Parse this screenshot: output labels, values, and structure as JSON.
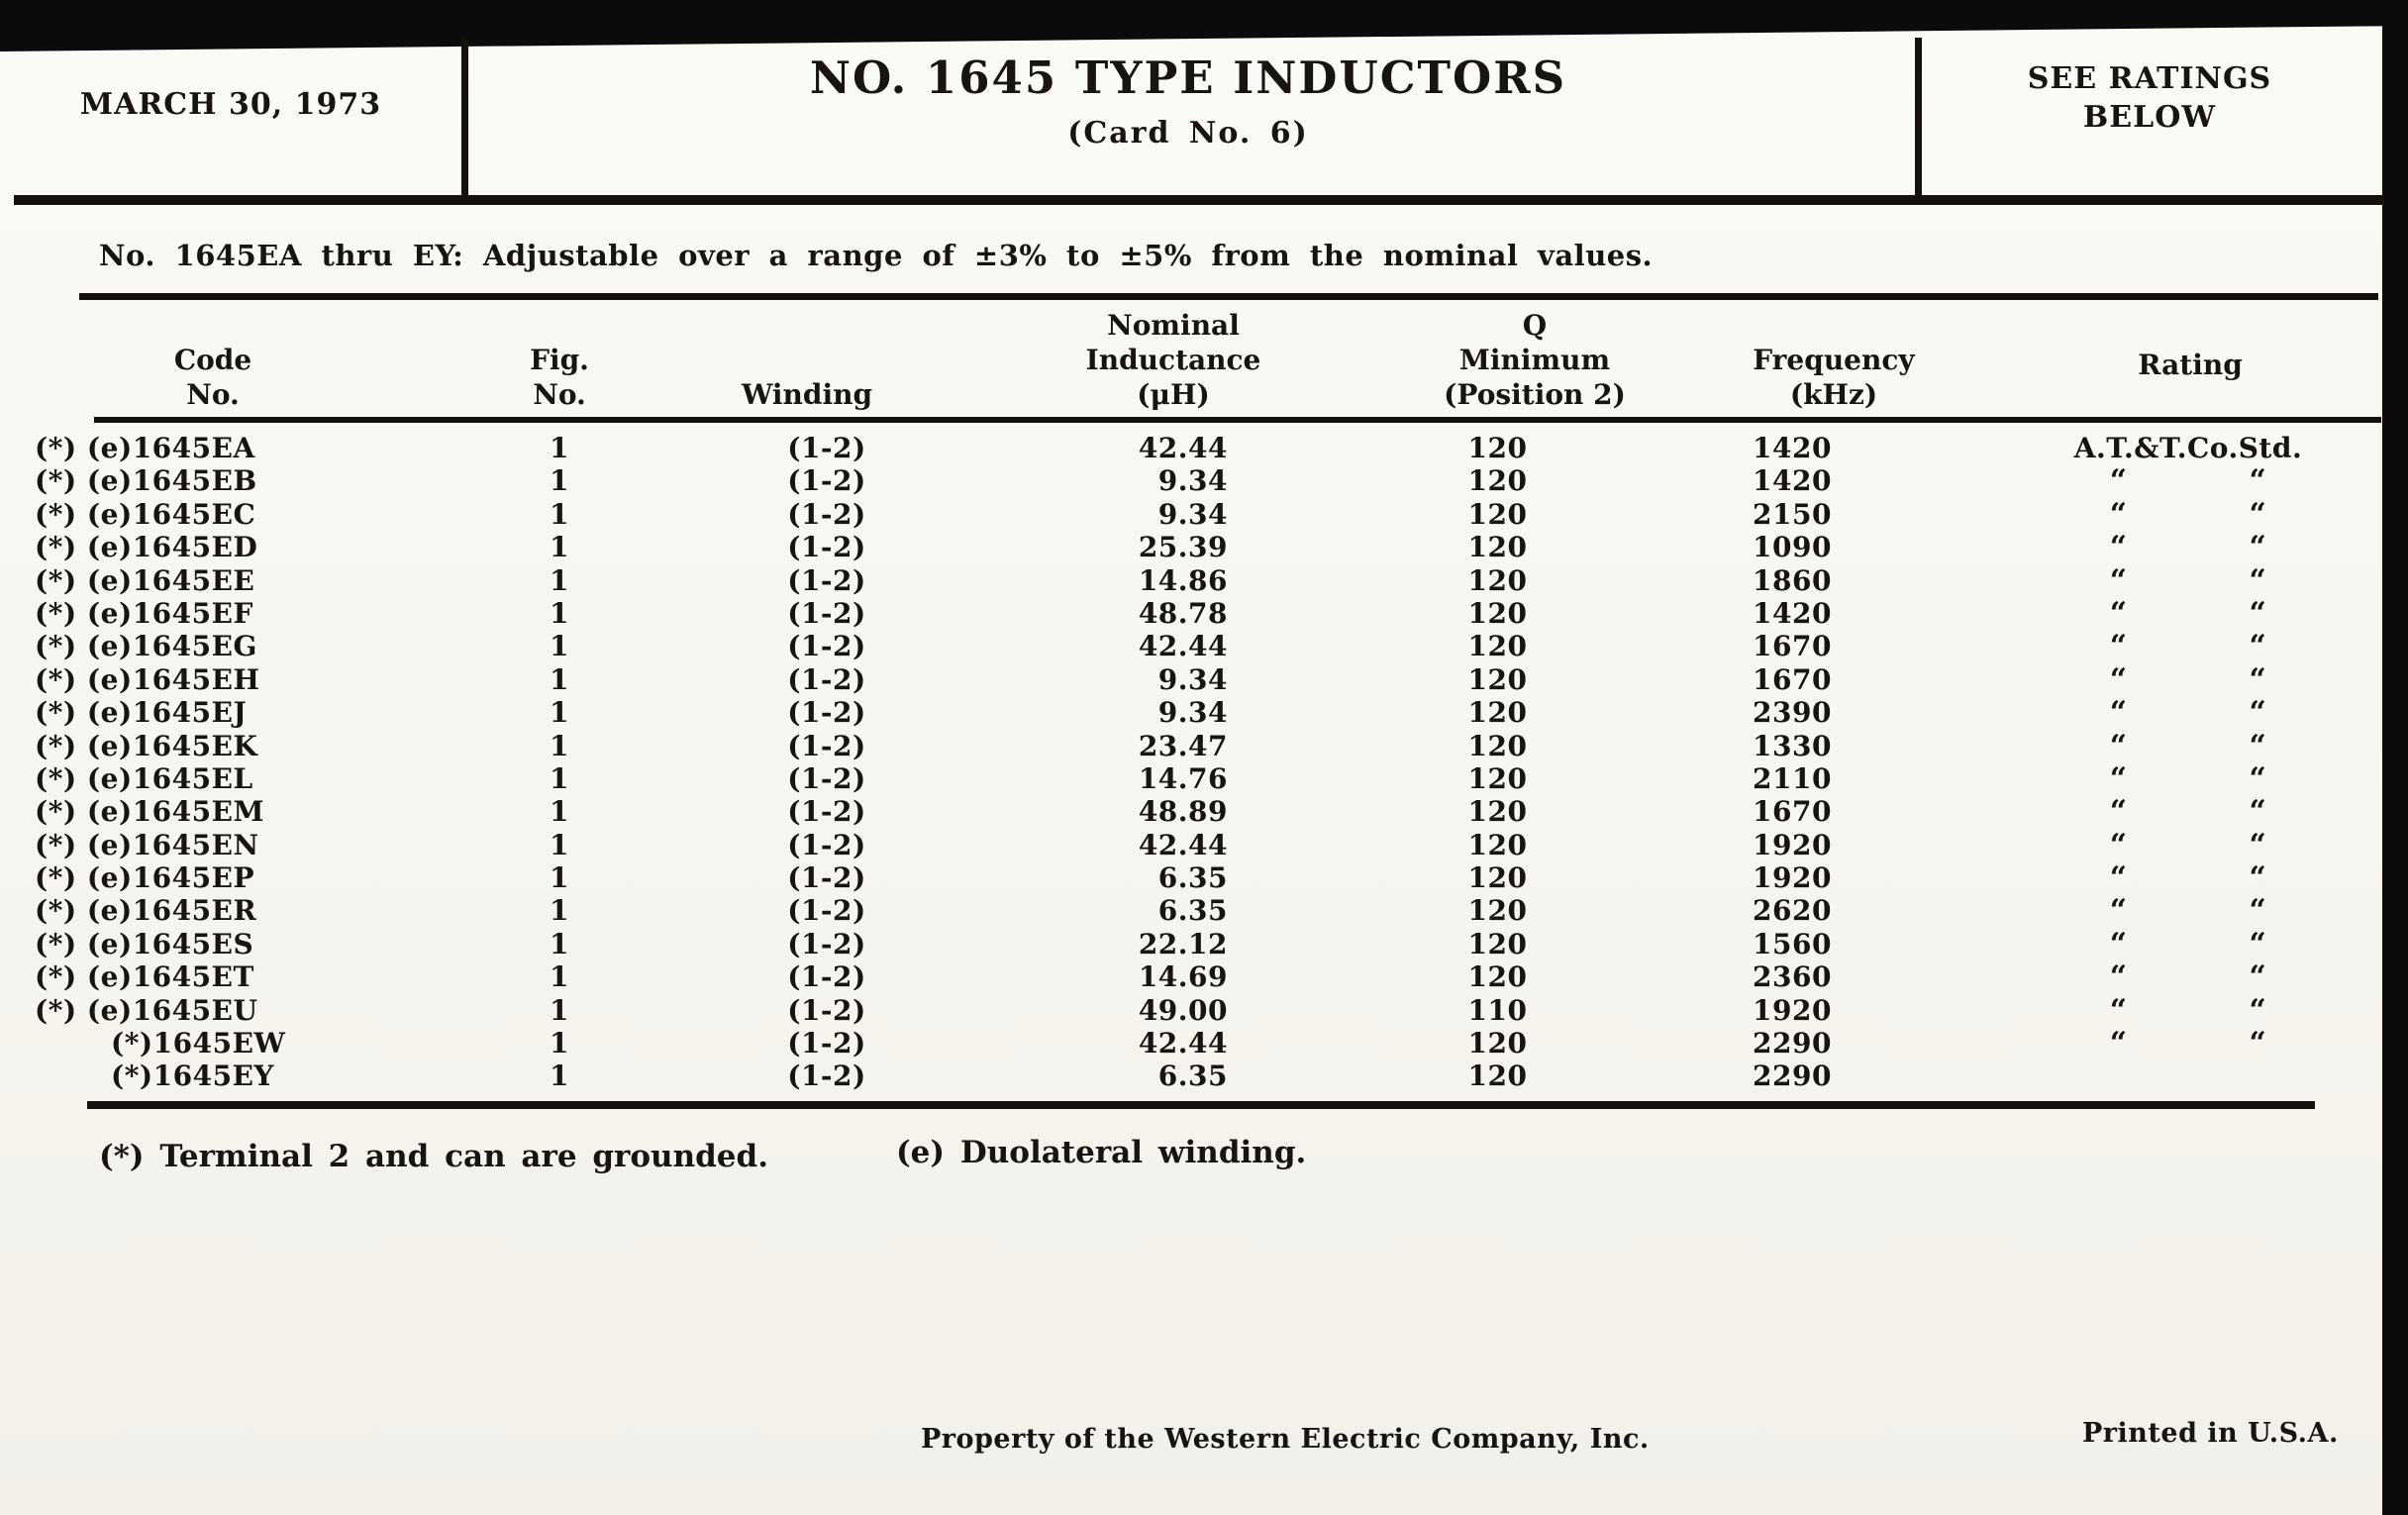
{
  "header": {
    "date": "MARCH 30, 1973",
    "title": "NO. 1645 TYPE INDUCTORS",
    "card_no": "(Card No. 6)",
    "ratings_note": "SEE RATINGS\nBELOW"
  },
  "intro": "No. 1645EA thru EY:  Adjustable over a range of ±3% to ±5% from the nominal values.",
  "table": {
    "headers": {
      "code": "Code\nNo.",
      "fig": "Fig.\nNo.",
      "winding": "Winding",
      "inductance": "Nominal\nInductance\n(μH)",
      "q": "Q\nMinimum\n(Position 2)",
      "frequency": "Frequency\n(kHz)",
      "rating": "Rating"
    },
    "rows": [
      {
        "code": "(*) (e)1645EA",
        "fig": "1",
        "winding": "(1-2)",
        "inductance": "42.44",
        "q": "120",
        "frequency": "1420",
        "rating": "A.T.&T.Co.Std."
      },
      {
        "code": "(*) (e)1645EB",
        "fig": "1",
        "winding": "(1-2)",
        "inductance": "9.34",
        "q": "120",
        "frequency": "1420",
        "rating": "“ “"
      },
      {
        "code": "(*) (e)1645EC",
        "fig": "1",
        "winding": "(1-2)",
        "inductance": "9.34",
        "q": "120",
        "frequency": "2150",
        "rating": "“ “"
      },
      {
        "code": "(*) (e)1645ED",
        "fig": "1",
        "winding": "(1-2)",
        "inductance": "25.39",
        "q": "120",
        "frequency": "1090",
        "rating": "“ “"
      },
      {
        "code": "(*) (e)1645EE",
        "fig": "1",
        "winding": "(1-2)",
        "inductance": "14.86",
        "q": "120",
        "frequency": "1860",
        "rating": "“ “"
      },
      {
        "code": "(*) (e)1645EF",
        "fig": "1",
        "winding": "(1-2)",
        "inductance": "48.78",
        "q": "120",
        "frequency": "1420",
        "rating": "“ “"
      },
      {
        "code": "(*) (e)1645EG",
        "fig": "1",
        "winding": "(1-2)",
        "inductance": "42.44",
        "q": "120",
        "frequency": "1670",
        "rating": "“ “"
      },
      {
        "code": "(*) (e)1645EH",
        "fig": "1",
        "winding": "(1-2)",
        "inductance": "9.34",
        "q": "120",
        "frequency": "1670",
        "rating": "“ “"
      },
      {
        "code": "(*) (e)1645EJ",
        "fig": "1",
        "winding": "(1-2)",
        "inductance": "9.34",
        "q": "120",
        "frequency": "2390",
        "rating": "“ “"
      },
      {
        "code": "(*) (e)1645EK",
        "fig": "1",
        "winding": "(1-2)",
        "inductance": "23.47",
        "q": "120",
        "frequency": "1330",
        "rating": "“ “"
      },
      {
        "code": "(*) (e)1645EL",
        "fig": "1",
        "winding": "(1-2)",
        "inductance": "14.76",
        "q": "120",
        "frequency": "2110",
        "rating": "“ “"
      },
      {
        "code": "(*) (e)1645EM",
        "fig": "1",
        "winding": "(1-2)",
        "inductance": "48.89",
        "q": "120",
        "frequency": "1670",
        "rating": "“ “"
      },
      {
        "code": "(*) (e)1645EN",
        "fig": "1",
        "winding": "(1-2)",
        "inductance": "42.44",
        "q": "120",
        "frequency": "1920",
        "rating": "“ “"
      },
      {
        "code": "(*) (e)1645EP",
        "fig": "1",
        "winding": "(1-2)",
        "inductance": "6.35",
        "q": "120",
        "frequency": "1920",
        "rating": "“ “"
      },
      {
        "code": "(*) (e)1645ER",
        "fig": "1",
        "winding": "(1-2)",
        "inductance": "6.35",
        "q": "120",
        "frequency": "2620",
        "rating": "“ “"
      },
      {
        "code": "(*) (e)1645ES",
        "fig": "1",
        "winding": "(1-2)",
        "inductance": "22.12",
        "q": "120",
        "frequency": "1560",
        "rating": "“ “"
      },
      {
        "code": "(*) (e)1645ET",
        "fig": "1",
        "winding": "(1-2)",
        "inductance": "14.69",
        "q": "120",
        "frequency": "2360",
        "rating": "“ “"
      },
      {
        "code": "(*) (e)1645EU",
        "fig": "1",
        "winding": "(1-2)",
        "inductance": "49.00",
        "q": "110",
        "frequency": "1920",
        "rating": "“ “"
      },
      {
        "code": "(*)1645EW",
        "fig": "1",
        "winding": "(1-2)",
        "inductance": "42.44",
        "q": "120",
        "frequency": "2290",
        "rating": "“ “"
      },
      {
        "code": "(*)1645EY",
        "fig": "1",
        "winding": "(1-2)",
        "inductance": "6.35",
        "q": "120",
        "frequency": "2290",
        "rating": ""
      }
    ]
  },
  "footnotes": {
    "asterisk": "(*)  Terminal 2 and can are grounded.",
    "e": "(e)  Duolateral winding."
  },
  "footer": {
    "property": "Property of the Western Electric Company, Inc.",
    "printed": "Printed in U.S.A."
  }
}
